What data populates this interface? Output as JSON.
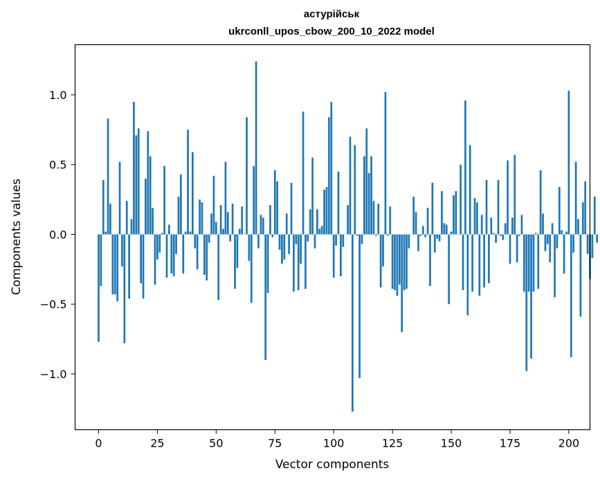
{
  "chart_data": {
    "type": "bar",
    "title_line1": "астурійськ",
    "title_line2": "ukrconll_upos_cbow_200_10_2022 model",
    "xlabel": "Vector components",
    "ylabel": "Components values",
    "xlim": [
      -10,
      209
    ],
    "ylim": [
      -1.4,
      1.36
    ],
    "xticks": [
      0,
      25,
      50,
      75,
      100,
      125,
      150,
      175,
      200
    ],
    "xtick_labels": [
      "0",
      "25",
      "50",
      "75",
      "100",
      "125",
      "150",
      "175",
      "200"
    ],
    "yticks": [
      -1.0,
      -0.5,
      0.0,
      0.5,
      1.0
    ],
    "ytick_labels": [
      "−1.0",
      "−0.5",
      "0.0",
      "0.5",
      "1.0"
    ],
    "color": "#1f77b4",
    "values": [
      -0.77,
      -0.37,
      0.39,
      0.02,
      0.83,
      0.22,
      -0.43,
      -0.43,
      -0.48,
      0.52,
      -0.23,
      -0.78,
      0.24,
      -0.46,
      0.11,
      0.95,
      0.71,
      0.76,
      -0.35,
      -0.46,
      0.4,
      0.74,
      0.56,
      0.19,
      -0.36,
      -0.18,
      -0.13,
      0.01,
      0.49,
      -0.31,
      0.07,
      -0.28,
      -0.3,
      -0.14,
      0.27,
      0.43,
      -0.28,
      0.02,
      0.75,
      0.02,
      0.59,
      -0.1,
      -0.25,
      0.25,
      0.23,
      -0.29,
      -0.33,
      -0.06,
      0.15,
      0.42,
      0.09,
      -0.47,
      0.21,
      0.04,
      0.52,
      0.16,
      -0.05,
      0.22,
      -0.39,
      -0.24,
      0.04,
      0.2,
      0.0,
      0.84,
      -0.19,
      -0.49,
      0.49,
      1.24,
      -0.1,
      0.14,
      0.12,
      -0.9,
      -0.42,
      0.21,
      -0.02,
      0.46,
      0.38,
      -0.11,
      -0.21,
      -0.18,
      0.15,
      -0.14,
      0.37,
      -0.41,
      -0.07,
      -0.4,
      -0.21,
      0.88,
      -0.39,
      -0.05,
      0.18,
      0.55,
      -0.1,
      0.18,
      0.04,
      0.06,
      0.32,
      0.34,
      0.84,
      0.95,
      -0.31,
      -0.08,
      0.45,
      -0.3,
      -0.09,
      0.0,
      0.21,
      0.7,
      -1.27,
      0.64,
      -0.01,
      -1.03,
      -0.07,
      0.56,
      0.76,
      0.44,
      0.56,
      0.24,
      -0.01,
      0.22,
      -0.38,
      -0.23,
      1.02,
      -0.01,
      0.2,
      -0.39,
      -0.4,
      -0.44,
      -0.36,
      -0.7,
      -0.4,
      -0.39,
      -0.1,
      0.0,
      0.27,
      0.16,
      -0.12,
      -0.01,
      0.06,
      -0.02,
      0.19,
      -0.37,
      0.37,
      -0.13,
      -0.03,
      -0.05,
      0.31,
      0.08,
      0.07,
      -0.5,
      0.02,
      0.28,
      0.31,
      0.0,
      0.5,
      -0.4,
      0.96,
      -0.58,
      0.64,
      -0.41,
      0.26,
      0.23,
      -0.44,
      0.14,
      -0.38,
      0.39,
      -0.35,
      0.12,
      0.01,
      -0.06,
      0.39,
      -0.01,
      -0.04,
      0.08,
      0.53,
      -0.21,
      0.12,
      0.57,
      -0.2,
      -0.01,
      0.14,
      -0.41,
      -0.98,
      -0.41,
      -0.89,
      -0.41,
      0.01,
      -0.39,
      0.46,
      0.15,
      -0.12,
      -0.07,
      -0.2,
      0.08,
      -0.45,
      -0.1,
      0.34,
      0.03,
      -0.28,
      0.02,
      1.03,
      -0.88,
      -0.13,
      0.52,
      0.11,
      -0.59,
      0.23,
      0.38,
      -0.14,
      -0.32,
      -0.17,
      0.27,
      -0.06
    ]
  }
}
